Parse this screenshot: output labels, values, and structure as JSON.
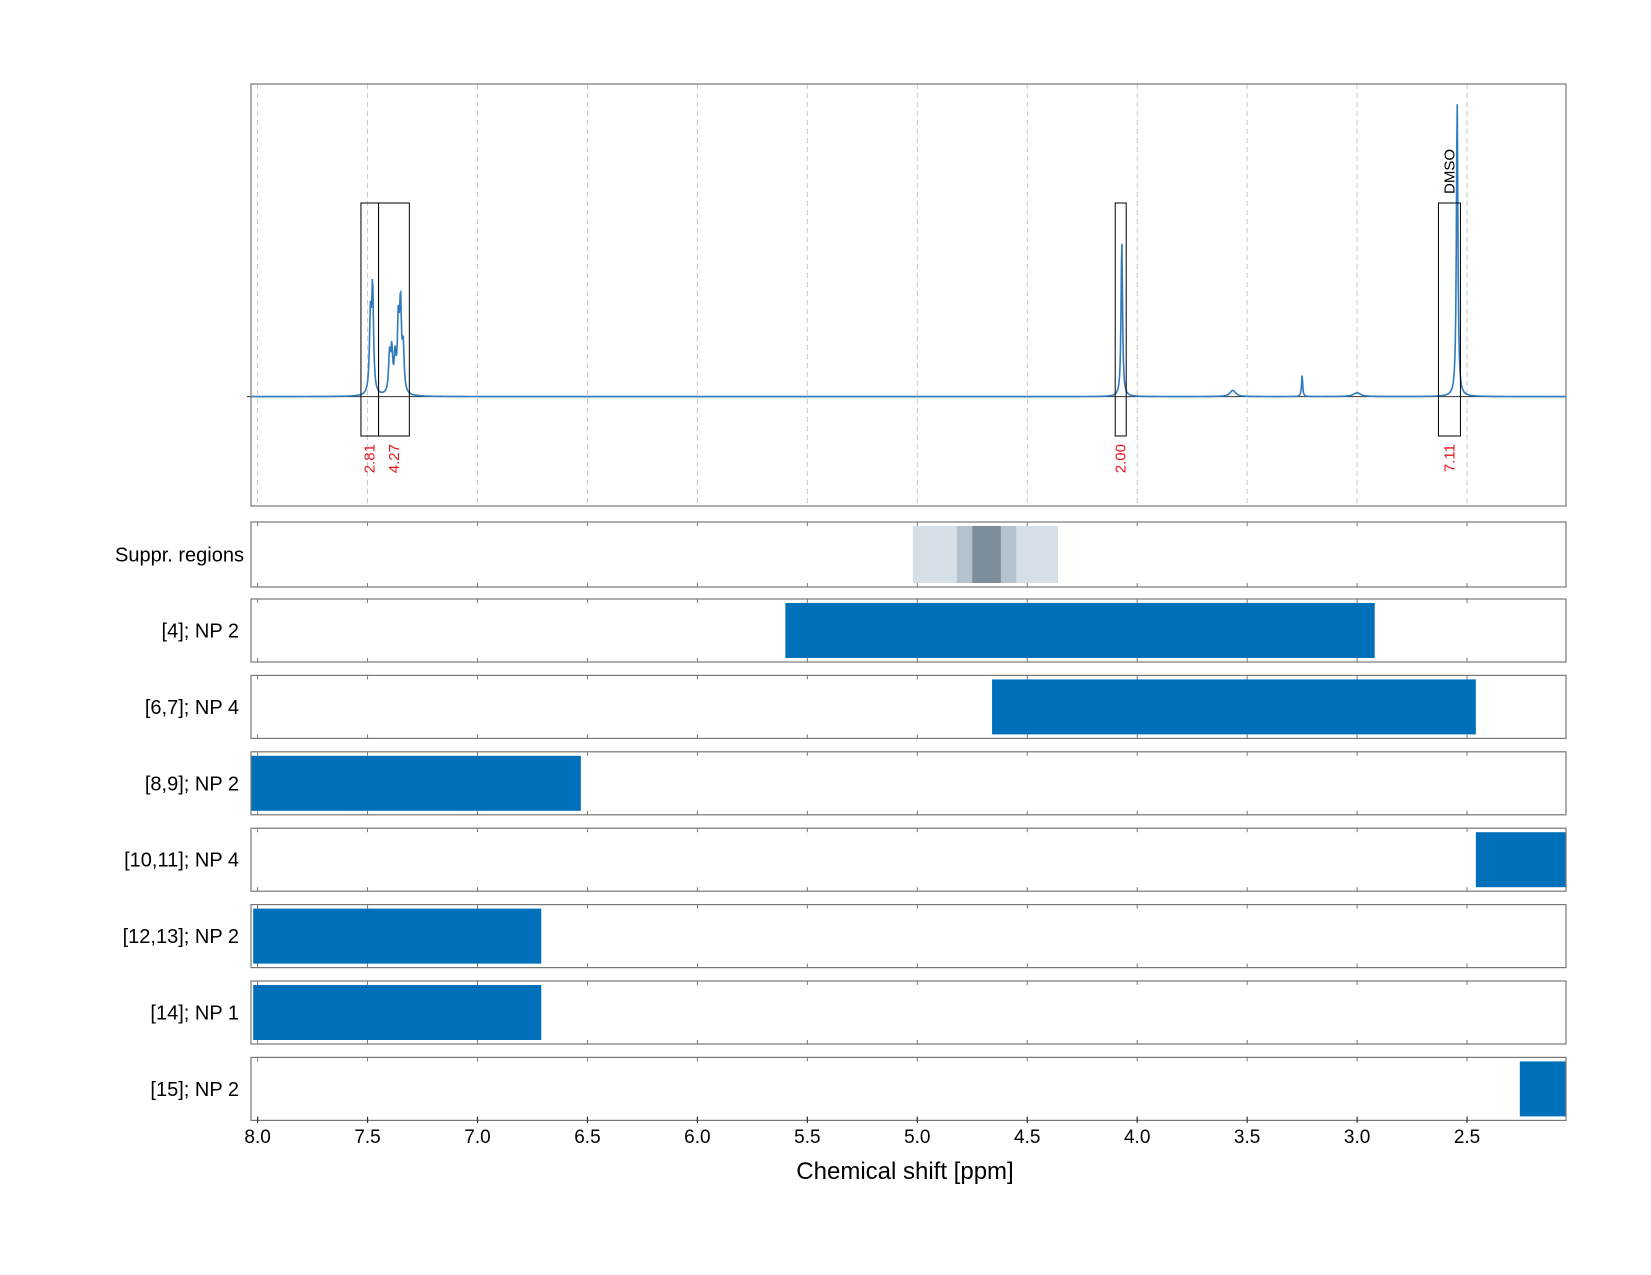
{
  "chart_data": {
    "type": "line",
    "x_axis": {
      "label": "Chemical shift [ppm]",
      "range": [
        8.03,
        2.05
      ],
      "reversed": true,
      "ticks": [
        8.0,
        7.5,
        7.0,
        6.5,
        6.0,
        5.5,
        5.0,
        4.5,
        4.0,
        3.5,
        3.0,
        2.5
      ],
      "tick_labels": [
        "8.0",
        "7.5",
        "7.0",
        "6.5",
        "6.0",
        "5.5",
        "5.0",
        "4.5",
        "4.0",
        "3.5",
        "3.0",
        "2.5"
      ]
    },
    "spectrum": {
      "name": "1H NMR spectrum",
      "color": "#2f7bbf",
      "baseline": 0,
      "y_range": [
        -0.35,
        1.0
      ],
      "peaks": [
        {
          "ppm": 7.487,
          "height": 0.24,
          "width": 0.005
        },
        {
          "ppm": 7.477,
          "height": 0.33,
          "width": 0.005
        },
        {
          "ppm": 7.4,
          "height": 0.12,
          "width": 0.005
        },
        {
          "ppm": 7.39,
          "height": 0.13,
          "width": 0.005
        },
        {
          "ppm": 7.375,
          "height": 0.11,
          "width": 0.005
        },
        {
          "ppm": 7.36,
          "height": 0.22,
          "width": 0.005
        },
        {
          "ppm": 7.35,
          "height": 0.27,
          "width": 0.005
        },
        {
          "ppm": 7.338,
          "height": 0.14,
          "width": 0.005
        },
        {
          "ppm": 4.07,
          "height": 0.5,
          "width": 0.004
        },
        {
          "ppm": 3.565,
          "height": 0.02,
          "width": 0.015
        },
        {
          "ppm": 3.25,
          "height": 0.07,
          "width": 0.003
        },
        {
          "ppm": 3.0,
          "height": 0.012,
          "width": 0.02
        },
        {
          "ppm": 2.545,
          "height": 0.95,
          "width": 0.004
        }
      ]
    },
    "integration_regions": [
      {
        "from": 7.53,
        "to": 7.45,
        "integral": "2.81",
        "label": ""
      },
      {
        "from": 7.45,
        "to": 7.31,
        "integral": "4.27",
        "label": ""
      },
      {
        "from": 4.1,
        "to": 4.05,
        "integral": "2.00",
        "label": ""
      },
      {
        "from": 2.63,
        "to": 2.53,
        "integral": "7.11",
        "label": "DMSO"
      }
    ],
    "suppression": {
      "label": "Suppr. regions",
      "bands": [
        {
          "from": 5.02,
          "to": 4.36,
          "color": "#d6dfe6"
        },
        {
          "from": 4.82,
          "to": 4.55,
          "color": "#b3c2cd"
        },
        {
          "from": 4.75,
          "to": 4.62,
          "color": "#7d8e9a"
        }
      ]
    },
    "assignment_rows": [
      {
        "label": "[4]; NP 2",
        "from": 5.6,
        "to": 2.92
      },
      {
        "label": "[6,7]; NP 4",
        "from": 4.66,
        "to": 2.46
      },
      {
        "label": "[8,9]; NP 2",
        "from": 8.03,
        "to": 6.53
      },
      {
        "label": "[10,11]; NP 4",
        "from": 2.46,
        "to": 2.05
      },
      {
        "label": "[12,13]; NP 2",
        "from": 8.02,
        "to": 6.71
      },
      {
        "label": "[14]; NP 1",
        "from": 8.02,
        "to": 6.71
      },
      {
        "label": "[15]; NP 2",
        "from": 2.26,
        "to": 2.05
      }
    ],
    "bar_color": "#0070bb",
    "grid": "dashed-vertical"
  }
}
